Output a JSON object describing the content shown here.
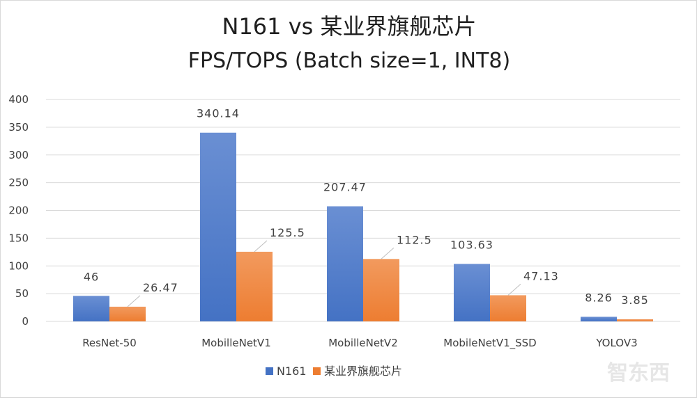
{
  "colors": {
    "n161": "#4472C4",
    "n161_top": "#6a8fd3",
    "other": "#ED7D31",
    "other_top": "#f29a5e",
    "grid": "#d9d9d9",
    "leader": "#bfbfbf"
  },
  "chart_data": {
    "type": "bar",
    "title": "N161 vs 某业界旗舰芯片",
    "subtitle": "FPS/TOPS (Batch size=1, INT8)",
    "categories": [
      "ResNet-50",
      "MobilleNetV1",
      "MobilleNetV2",
      "MobileNetV1_SSD",
      "YOLOV3"
    ],
    "series": [
      {
        "name": "N161",
        "values": [
          46,
          340.14,
          207.47,
          103.63,
          8.26
        ],
        "labels": [
          "46",
          "340.14",
          "207.47",
          "103.63",
          "8.26"
        ]
      },
      {
        "name": "某业界旗舰芯片",
        "values": [
          26.47,
          125.5,
          112.5,
          47.13,
          3.85
        ],
        "labels": [
          "26.47",
          "125.5",
          "112.5",
          "47.13",
          "3.85"
        ]
      }
    ],
    "yticks": [
      "0",
      "50",
      "100",
      "150",
      "200",
      "250",
      "300",
      "350",
      "400"
    ],
    "ylim": [
      0,
      400
    ],
    "grid": true,
    "legend": "bottom",
    "xlabel": "",
    "ylabel": ""
  },
  "watermark": "智东西"
}
